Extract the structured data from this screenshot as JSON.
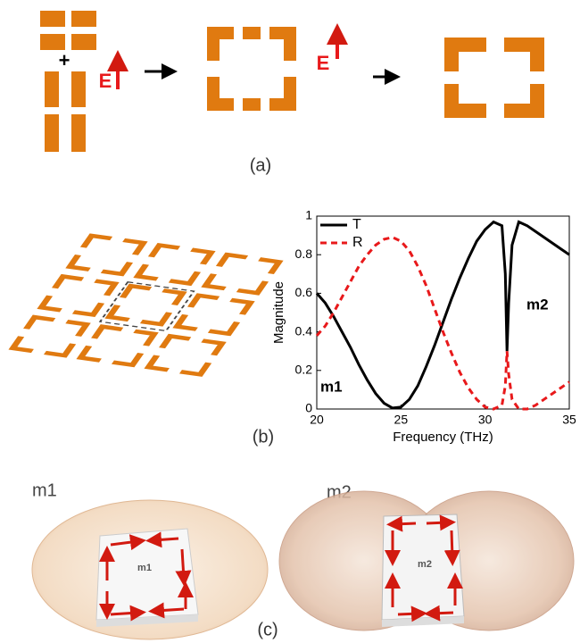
{
  "panel_a": {
    "label": "(a)",
    "field_labels": [
      "E",
      "E"
    ]
  },
  "panel_b": {
    "label": "(b)"
  },
  "chart_data": {
    "type": "line",
    "xlabel": "Frequency (THz)",
    "ylabel": "Magnitude",
    "x": [
      20,
      20.5,
      21,
      21.5,
      22,
      22.5,
      23,
      23.5,
      24,
      24.5,
      25,
      25.5,
      26,
      26.5,
      27,
      27.5,
      28,
      28.5,
      29,
      29.5,
      30,
      30.5,
      31,
      31.2,
      31.3,
      31.4,
      31.6,
      32,
      32.5,
      33,
      33.5,
      34,
      34.5,
      35
    ],
    "series": [
      {
        "name": "T",
        "color": "#000000",
        "dashed": false,
        "values": [
          0.6,
          0.55,
          0.48,
          0.4,
          0.32,
          0.23,
          0.15,
          0.08,
          0.03,
          0.005,
          0.01,
          0.05,
          0.12,
          0.22,
          0.33,
          0.45,
          0.57,
          0.68,
          0.78,
          0.87,
          0.93,
          0.97,
          0.95,
          0.7,
          0.3,
          0.55,
          0.85,
          0.97,
          0.95,
          0.92,
          0.89,
          0.86,
          0.83,
          0.8
        ]
      },
      {
        "name": "R",
        "color": "#e8191b",
        "dashed": true,
        "values": [
          0.38,
          0.43,
          0.5,
          0.58,
          0.66,
          0.74,
          0.8,
          0.85,
          0.88,
          0.89,
          0.87,
          0.82,
          0.74,
          0.64,
          0.52,
          0.4,
          0.29,
          0.19,
          0.11,
          0.05,
          0.01,
          0.0,
          0.02,
          0.12,
          0.3,
          0.18,
          0.05,
          0.0,
          0.0,
          0.02,
          0.05,
          0.08,
          0.11,
          0.14
        ]
      }
    ],
    "xlim": [
      20,
      35
    ],
    "xticks": [
      20,
      25,
      30,
      35
    ],
    "ylim": [
      0,
      1
    ],
    "yticks": [
      0,
      0.2,
      0.4,
      0.6,
      0.8,
      1
    ],
    "annotations": [
      "m1",
      "m2"
    ],
    "legend": "upper left"
  },
  "panel_c": {
    "label": "(c)",
    "modes": [
      "m1",
      "m2"
    ],
    "inner_labels": [
      "m1",
      "m2"
    ]
  }
}
